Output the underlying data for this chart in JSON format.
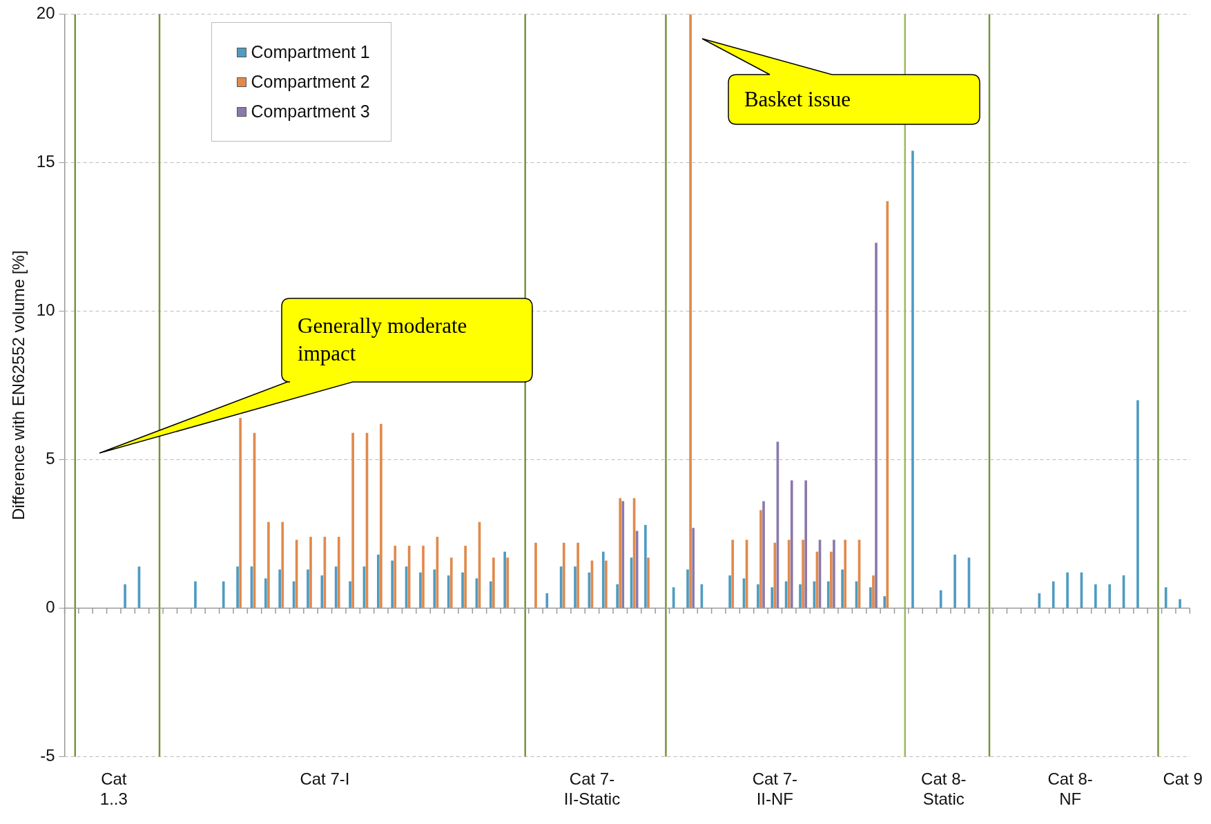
{
  "chart_data": {
    "type": "bar",
    "ylabel": "Difference with EN62552 volume [%]",
    "categories": [
      null,
      null,
      null,
      "Cat\n1..3",
      null,
      null,
      null,
      null,
      null,
      null,
      null,
      null,
      null,
      null,
      null,
      null,
      null,
      null,
      "Cat 7-I",
      null,
      null,
      null,
      null,
      null,
      null,
      null,
      null,
      null,
      null,
      null,
      null,
      null,
      null,
      null,
      null,
      null,
      null,
      "Cat 7-\nII-Static",
      null,
      null,
      null,
      null,
      null,
      null,
      null,
      null,
      null,
      null,
      null,
      null,
      "Cat 7-\nII-NF",
      null,
      null,
      null,
      null,
      null,
      null,
      null,
      null,
      null,
      null,
      null,
      "Cat 8-\nStatic",
      null,
      null,
      null,
      null,
      null,
      null,
      null,
      null,
      "Cat 8-\nNF",
      null,
      null,
      null,
      null,
      null,
      null,
      null,
      "Cat 9"
    ],
    "series": [
      {
        "name": "Compartment 1",
        "color": "#4f9bc2",
        "values": [
          null,
          null,
          null,
          null,
          0.8,
          1.4,
          null,
          null,
          null,
          0.9,
          null,
          0.9,
          1.4,
          1.4,
          1.0,
          1.3,
          0.9,
          1.3,
          1.1,
          1.4,
          0.9,
          1.4,
          1.8,
          1.6,
          1.4,
          1.2,
          1.3,
          1.1,
          1.2,
          1.0,
          0.9,
          1.9,
          null,
          null,
          0.5,
          1.4,
          1.4,
          1.2,
          1.9,
          0.8,
          1.7,
          2.8,
          null,
          0.7,
          1.3,
          0.8,
          null,
          1.1,
          1.0,
          0.8,
          0.7,
          0.9,
          0.8,
          0.9,
          0.9,
          1.3,
          0.9,
          0.7,
          0.4,
          null,
          15.4,
          null,
          0.6,
          1.8,
          1.7,
          null,
          null,
          null,
          null,
          0.5,
          0.9,
          1.2,
          1.2,
          0.8,
          0.8,
          1.1,
          7.0,
          null,
          0.7,
          0.3
        ]
      },
      {
        "name": "Compartment 2",
        "color": "#e08a4c",
        "values": [
          null,
          null,
          null,
          null,
          null,
          null,
          null,
          null,
          null,
          null,
          null,
          null,
          6.4,
          5.9,
          2.9,
          2.9,
          2.3,
          2.4,
          2.4,
          2.4,
          5.9,
          5.9,
          6.2,
          2.1,
          2.1,
          2.1,
          2.4,
          1.7,
          2.1,
          2.9,
          1.7,
          1.7,
          null,
          2.2,
          null,
          2.2,
          2.2,
          1.6,
          1.6,
          3.7,
          3.7,
          1.7,
          null,
          null,
          20,
          null,
          null,
          2.3,
          2.3,
          3.3,
          2.2,
          2.3,
          2.3,
          1.9,
          1.9,
          2.3,
          2.3,
          1.1,
          13.7,
          null,
          null,
          null,
          null,
          null,
          null,
          null,
          null,
          null,
          null,
          null,
          null,
          null,
          null,
          null,
          null,
          null,
          null,
          null,
          null,
          null
        ]
      },
      {
        "name": "Compartment 3",
        "color": "#8a7aab",
        "values": [
          null,
          null,
          null,
          null,
          null,
          null,
          null,
          null,
          null,
          null,
          null,
          null,
          null,
          null,
          null,
          null,
          null,
          null,
          null,
          null,
          null,
          null,
          null,
          null,
          null,
          null,
          null,
          null,
          null,
          null,
          null,
          null,
          null,
          null,
          null,
          null,
          null,
          null,
          null,
          3.6,
          2.6,
          null,
          null,
          null,
          2.7,
          null,
          null,
          null,
          null,
          3.6,
          5.6,
          4.3,
          4.3,
          2.3,
          2.3,
          null,
          null,
          12.3,
          null,
          null,
          null,
          null,
          null,
          null,
          null,
          null,
          null,
          null,
          null,
          null,
          null,
          null,
          null,
          null,
          null,
          null,
          null,
          null,
          null,
          null
        ]
      }
    ],
    "ylim": [
      -5,
      20
    ],
    "yticks": [
      -5,
      0,
      5,
      10,
      15,
      20
    ],
    "grid": "y",
    "legend": "top left",
    "annotations": [
      "Generally moderate impact",
      "Basket issue"
    ]
  }
}
